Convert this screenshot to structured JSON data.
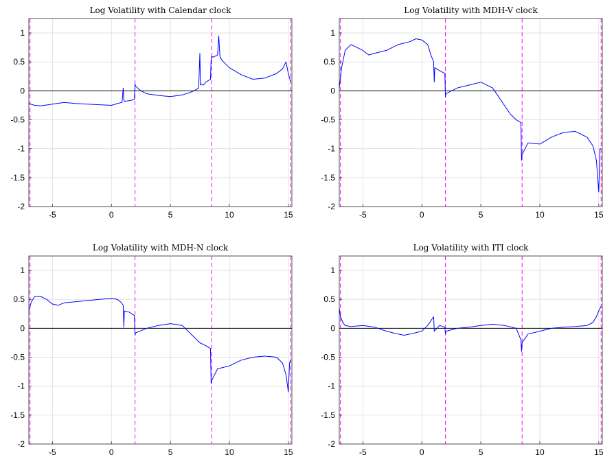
{
  "chart_data": [
    {
      "type": "line",
      "title": "Log Volatility with Calendar clock",
      "xlim": [
        -7,
        15.3
      ],
      "ylim": [
        -2,
        1.25
      ],
      "xticks": [
        -5,
        0,
        5,
        10,
        15
      ],
      "yticks": [
        1,
        0.5,
        0,
        -0.5,
        -1,
        -1.5,
        -2
      ],
      "xtick_labels": [
        "-5",
        "0",
        "5",
        "10",
        "15"
      ],
      "ytick_labels": [
        "1",
        "0.5",
        "0",
        "-0.5",
        "-1",
        "-1.5",
        "-2"
      ],
      "grid": true,
      "reference_line_y": 0,
      "vlines": [
        -6.9,
        2,
        8.5,
        15.2
      ],
      "series": [
        {
          "color": "#0000ff",
          "x": [
            -7,
            -6.5,
            -6,
            -5,
            -4,
            -3,
            -2,
            -1,
            0,
            0.5,
            0.9,
            1.0,
            1.05,
            1.1,
            1.5,
            1.95,
            2,
            2.05,
            2.5,
            3,
            4,
            5,
            6,
            6.5,
            7,
            7.4,
            7.5,
            7.55,
            7.6,
            7.8,
            8,
            8.4,
            8.45,
            8.5,
            8.6,
            8.8,
            9,
            9.1,
            9.2,
            9.3,
            9.5,
            10,
            11,
            12,
            13,
            14,
            14.5,
            14.8,
            15,
            15.2
          ],
          "y": [
            -0.22,
            -0.25,
            -0.26,
            -0.23,
            -0.2,
            -0.22,
            -0.23,
            -0.24,
            -0.25,
            -0.22,
            -0.2,
            0.05,
            -0.16,
            -0.18,
            -0.17,
            -0.15,
            0.12,
            0.08,
            0.0,
            -0.05,
            -0.08,
            -0.1,
            -0.07,
            -0.04,
            0.0,
            0.05,
            0.65,
            0.1,
            0.12,
            0.1,
            0.15,
            0.2,
            0.55,
            0.6,
            0.58,
            0.6,
            0.62,
            0.95,
            0.6,
            0.55,
            0.5,
            0.4,
            0.28,
            0.2,
            0.22,
            0.3,
            0.38,
            0.5,
            0.3,
            0.15
          ]
        }
      ]
    },
    {
      "type": "line",
      "title": "Log Volatility with MDH-V clock",
      "xlim": [
        -7,
        15.3
      ],
      "ylim": [
        -2,
        1.25
      ],
      "xticks": [
        -5,
        0,
        5,
        10,
        15
      ],
      "yticks": [
        1,
        0.5,
        0,
        -0.5,
        -1,
        -1.5,
        -2
      ],
      "xtick_labels": [
        "-5",
        "0",
        "5",
        "10",
        "15"
      ],
      "ytick_labels": [
        "1",
        "0.5",
        "0",
        "-0.5",
        "-1",
        "-1.5",
        "-2"
      ],
      "grid": true,
      "reference_line_y": 0,
      "vlines": [
        -6.9,
        2,
        8.5,
        15.2
      ],
      "series": [
        {
          "color": "#0000ff",
          "x": [
            -7,
            -6.8,
            -6.5,
            -6,
            -5.5,
            -5,
            -4.5,
            -4,
            -3,
            -2,
            -1,
            -0.5,
            0,
            0.5,
            0.8,
            1.0,
            1.05,
            1.1,
            1.5,
            1.95,
            2,
            2.05,
            3,
            4,
            5,
            6,
            6.5,
            7,
            7.5,
            8,
            8.4,
            8.45,
            8.5,
            9,
            10,
            11,
            12,
            13,
            14,
            14.5,
            14.8,
            15,
            15.1,
            15.2
          ],
          "y": [
            0.05,
            0.4,
            0.7,
            0.8,
            0.75,
            0.7,
            0.62,
            0.65,
            0.7,
            0.8,
            0.85,
            0.9,
            0.88,
            0.8,
            0.6,
            0.5,
            0.15,
            0.4,
            0.35,
            0.3,
            -0.1,
            -0.05,
            0.05,
            0.1,
            0.15,
            0.05,
            -0.1,
            -0.25,
            -0.4,
            -0.5,
            -0.55,
            -1.2,
            -1.1,
            -0.9,
            -0.92,
            -0.8,
            -0.72,
            -0.7,
            -0.8,
            -0.95,
            -1.2,
            -1.75,
            -1.0,
            -1.0
          ]
        }
      ]
    },
    {
      "type": "line",
      "title": "Log Volatility with MDH-N clock",
      "xlim": [
        -7,
        15.3
      ],
      "ylim": [
        -2,
        1.25
      ],
      "xticks": [
        -5,
        0,
        5,
        10,
        15
      ],
      "yticks": [
        1,
        0.5,
        0,
        -0.5,
        -1,
        -1.5,
        -2
      ],
      "xtick_labels": [
        "-5",
        "0",
        "5",
        "10",
        "15"
      ],
      "ytick_labels": [
        "1",
        "0.5",
        "0",
        "-0.5",
        "-1",
        "-1.5",
        "-2"
      ],
      "grid": true,
      "reference_line_y": 0,
      "vlines": [
        -6.9,
        2,
        8.5,
        15.2
      ],
      "series": [
        {
          "color": "#0000ff",
          "x": [
            -7,
            -6.8,
            -6.5,
            -6,
            -5.5,
            -5,
            -4.5,
            -4,
            -3,
            -2,
            -1,
            0,
            0.5,
            0.8,
            1.0,
            1.05,
            1.1,
            1.5,
            1.95,
            2,
            2.05,
            3,
            4,
            5,
            6,
            6.5,
            7,
            7.5,
            8,
            8.4,
            8.45,
            8.5,
            9,
            10,
            11,
            12,
            13,
            14,
            14.5,
            14.8,
            15,
            15.1,
            15.2
          ],
          "y": [
            0.3,
            0.45,
            0.55,
            0.55,
            0.5,
            0.42,
            0.4,
            0.44,
            0.46,
            0.48,
            0.5,
            0.52,
            0.5,
            0.45,
            0.4,
            0.02,
            0.3,
            0.28,
            0.22,
            -0.12,
            -0.08,
            0.0,
            0.05,
            0.08,
            0.05,
            -0.05,
            -0.15,
            -0.25,
            -0.3,
            -0.35,
            -0.95,
            -0.9,
            -0.7,
            -0.65,
            -0.55,
            -0.5,
            -0.48,
            -0.5,
            -0.6,
            -0.8,
            -1.1,
            -0.6,
            -0.55
          ]
        }
      ]
    },
    {
      "type": "line",
      "title": "Log Volatility with ITI clock",
      "xlim": [
        -7,
        15.3
      ],
      "ylim": [
        -2,
        1.25
      ],
      "xticks": [
        -5,
        0,
        5,
        10,
        15
      ],
      "yticks": [
        1,
        0.5,
        0,
        -0.5,
        -1,
        -1.5,
        -2
      ],
      "xtick_labels": [
        "-5",
        "0",
        "5",
        "10",
        "15"
      ],
      "ytick_labels": [
        "1",
        "0.5",
        "0",
        "-0.5",
        "-1",
        "-1.5",
        "-2"
      ],
      "grid": true,
      "reference_line_y": 0,
      "vlines": [
        -6.9,
        2,
        8.5,
        15.2
      ],
      "series": [
        {
          "color": "#0000ff",
          "x": [
            -7,
            -6.9,
            -6.7,
            -6.5,
            -6,
            -5,
            -4,
            -3,
            -2,
            -1.5,
            -1,
            0,
            0.5,
            1.0,
            1.05,
            1.5,
            1.95,
            2,
            2.05,
            3,
            4,
            5,
            6,
            7,
            8,
            8.4,
            8.45,
            8.5,
            9,
            10,
            11,
            12,
            13,
            14,
            14.5,
            14.8,
            15,
            15.2
          ],
          "y": [
            0.35,
            0.2,
            0.1,
            0.05,
            0.03,
            0.05,
            0.02,
            -0.05,
            -0.1,
            -0.12,
            -0.1,
            -0.05,
            0.05,
            0.2,
            -0.05,
            0.05,
            0.02,
            -0.1,
            -0.05,
            0.0,
            0.02,
            0.05,
            0.07,
            0.05,
            0.0,
            -0.2,
            -0.4,
            -0.25,
            -0.1,
            -0.05,
            0.0,
            0.02,
            0.03,
            0.05,
            0.1,
            0.2,
            0.3,
            0.38
          ]
        }
      ]
    }
  ]
}
